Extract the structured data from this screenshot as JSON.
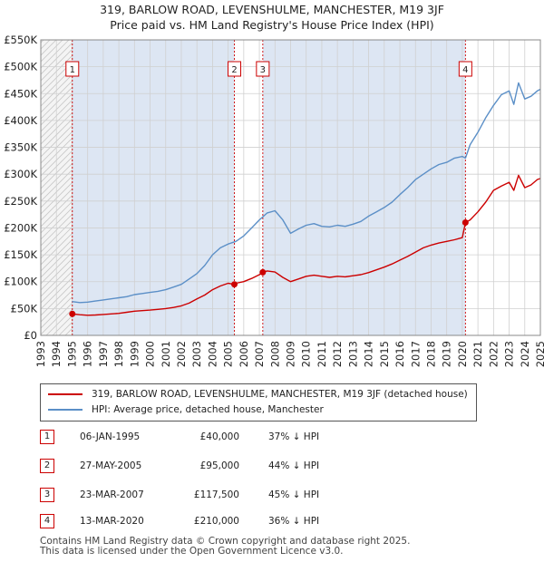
{
  "title_line1": "319, BARLOW ROAD, LEVENSHULME, MANCHESTER, M19 3JF",
  "title_line2": "Price paid vs. HM Land Registry's House Price Index (HPI)",
  "colors": {
    "price": "#cc0000",
    "hpi": "#5b8fc7",
    "shade": "#dde6f3",
    "grid": "#d0d0d0"
  },
  "chart_data": {
    "type": "line",
    "xlim": [
      1993,
      2025
    ],
    "ylim": [
      0,
      550000
    ],
    "yticks": [
      0,
      50000,
      100000,
      150000,
      200000,
      250000,
      300000,
      350000,
      400000,
      450000,
      500000,
      550000
    ],
    "ytick_labels": [
      "£0",
      "£50K",
      "£100K",
      "£150K",
      "£200K",
      "£250K",
      "£300K",
      "£350K",
      "£400K",
      "£450K",
      "£500K",
      "£550K"
    ],
    "xticks": [
      1993,
      1994,
      1995,
      1996,
      1997,
      1998,
      1999,
      2000,
      2001,
      2002,
      2003,
      2004,
      2005,
      2006,
      2007,
      2008,
      2009,
      2010,
      2011,
      2012,
      2013,
      2014,
      2015,
      2016,
      2017,
      2018,
      2019,
      2020,
      2021,
      2022,
      2023,
      2024,
      2025
    ],
    "data_start": 1995,
    "series": [
      {
        "name": "319, BARLOW ROAD, LEVENSHULME, MANCHESTER, M19 3JF (detached house)",
        "x": [
          1995.02,
          1995.5,
          1996,
          1996.5,
          1997,
          1997.5,
          1998,
          1998.5,
          1999,
          1999.5,
          2000,
          2000.5,
          2001,
          2001.5,
          2002,
          2002.5,
          2003,
          2003.5,
          2004,
          2004.5,
          2005,
          2005.4,
          2005.5,
          2006,
          2006.5,
          2007,
          2007.22,
          2007.5,
          2008,
          2008.5,
          2009,
          2009.5,
          2010,
          2010.5,
          2011,
          2011.5,
          2012,
          2012.5,
          2013,
          2013.5,
          2014,
          2014.5,
          2015,
          2015.5,
          2016,
          2016.5,
          2017,
          2017.5,
          2018,
          2018.5,
          2019,
          2019.5,
          2020,
          2020.2,
          2020.5,
          2021,
          2021.5,
          2022,
          2022.5,
          2023,
          2023.3,
          2023.6,
          2024,
          2024.4,
          2024.8,
          2025
        ],
        "values": [
          40000,
          38500,
          37500,
          38000,
          39000,
          40000,
          41000,
          43000,
          45000,
          46000,
          47000,
          48500,
          50000,
          52000,
          55000,
          60000,
          68000,
          75000,
          85000,
          92000,
          97000,
          95000,
          97000,
          100000,
          106000,
          113000,
          117500,
          120000,
          118000,
          108000,
          100000,
          105000,
          110000,
          112000,
          110000,
          108000,
          110000,
          109000,
          111000,
          113000,
          117000,
          122000,
          127000,
          133000,
          140000,
          147000,
          155000,
          163000,
          168000,
          172000,
          175000,
          178000,
          182000,
          210000,
          215000,
          230000,
          248000,
          270000,
          278000,
          285000,
          270000,
          298000,
          275000,
          280000,
          290000,
          292000
        ]
      },
      {
        "name": "HPI: Average price, detached house, Manchester",
        "x": [
          1995,
          1995.5,
          1996,
          1996.5,
          1997,
          1997.5,
          1998,
          1998.5,
          1999,
          1999.5,
          2000,
          2000.5,
          2001,
          2001.5,
          2002,
          2002.5,
          2003,
          2003.5,
          2004,
          2004.5,
          2005,
          2005.5,
          2006,
          2006.5,
          2007,
          2007.5,
          2008,
          2008.5,
          2009,
          2009.5,
          2010,
          2010.5,
          2011,
          2011.5,
          2012,
          2012.5,
          2013,
          2013.5,
          2014,
          2014.5,
          2015,
          2015.5,
          2016,
          2016.5,
          2017,
          2017.5,
          2018,
          2018.5,
          2019,
          2019.5,
          2020,
          2020.2,
          2020.5,
          2021,
          2021.5,
          2022,
          2022.5,
          2023,
          2023.3,
          2023.6,
          2024,
          2024.4,
          2024.8,
          2025
        ],
        "values": [
          63000,
          61000,
          62000,
          64000,
          66000,
          68000,
          70000,
          72000,
          76000,
          78000,
          80000,
          82000,
          85000,
          90000,
          95000,
          105000,
          115000,
          130000,
          150000,
          163000,
          170000,
          175000,
          185000,
          200000,
          215000,
          228000,
          232000,
          215000,
          190000,
          198000,
          205000,
          208000,
          203000,
          202000,
          205000,
          203000,
          207000,
          212000,
          222000,
          230000,
          238000,
          248000,
          262000,
          275000,
          290000,
          300000,
          310000,
          318000,
          322000,
          330000,
          333000,
          330000,
          355000,
          378000,
          405000,
          428000,
          448000,
          455000,
          430000,
          470000,
          440000,
          445000,
          455000,
          458000
        ]
      }
    ],
    "sales": [
      {
        "label": "1",
        "x": 1995.02,
        "value": 40000
      },
      {
        "label": "2",
        "x": 2005.4,
        "value": 95000
      },
      {
        "label": "3",
        "x": 2007.22,
        "value": 117500
      },
      {
        "label": "4",
        "x": 2020.2,
        "value": 210000
      }
    ]
  },
  "legend": {
    "price_label": "319, BARLOW ROAD, LEVENSHULME, MANCHESTER, M19 3JF (detached house)",
    "hpi_label": "HPI: Average price, detached house, Manchester"
  },
  "transactions": [
    {
      "num": "1",
      "date": "06-JAN-1995",
      "price": "£40,000",
      "hpi": "37% ↓ HPI"
    },
    {
      "num": "2",
      "date": "27-MAY-2005",
      "price": "£95,000",
      "hpi": "44% ↓ HPI"
    },
    {
      "num": "3",
      "date": "23-MAR-2007",
      "price": "£117,500",
      "hpi": "45% ↓ HPI"
    },
    {
      "num": "4",
      "date": "13-MAR-2020",
      "price": "£210,000",
      "hpi": "36% ↓ HPI"
    }
  ],
  "footer_line1": "Contains HM Land Registry data © Crown copyright and database right 2025.",
  "footer_line2": "This data is licensed under the Open Government Licence v3.0."
}
